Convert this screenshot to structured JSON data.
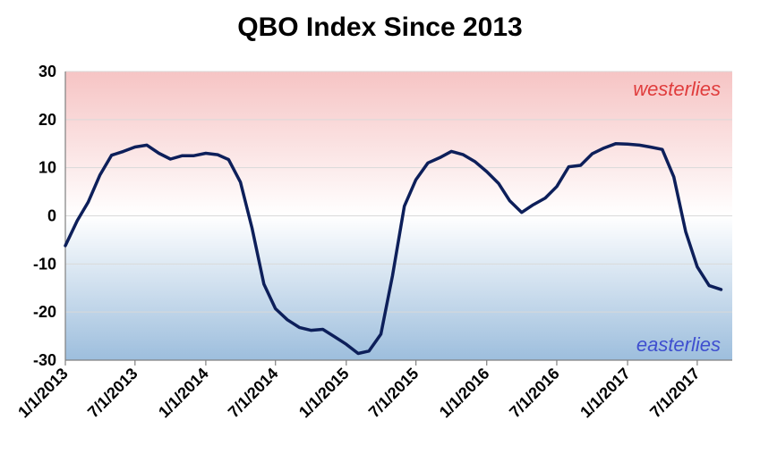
{
  "chart_data": {
    "type": "line",
    "title": "QBO Index Since 2013",
    "ylim": [
      -30,
      30
    ],
    "yticks": [
      30,
      20,
      10,
      0,
      -10,
      -20,
      -30
    ],
    "xlabels": [
      "1/1/2013",
      "7/1/2013",
      "1/1/2014",
      "7/1/2014",
      "1/1/2015",
      "7/1/2015",
      "1/1/2016",
      "7/1/2016",
      "1/1/2017",
      "7/1/2017"
    ],
    "annotations": [
      {
        "id": "westerlies",
        "text": "westerlies",
        "color": "#e03c3c"
      },
      {
        "id": "easterlies",
        "text": "easterlies",
        "color": "#3f4fcf"
      }
    ],
    "line_color": "#0d1f5a",
    "background": {
      "top_color": "#f6c4c4",
      "bottom_color": "#9dbedd"
    },
    "series": [
      {
        "x": [
          "2013-01",
          "2013-02",
          "2013-03",
          "2013-04",
          "2013-05",
          "2013-06",
          "2013-07",
          "2013-08",
          "2013-09",
          "2013-10",
          "2013-11",
          "2013-12",
          "2014-01",
          "2014-02",
          "2014-03",
          "2014-04",
          "2014-05",
          "2014-06",
          "2014-07",
          "2014-08",
          "2014-09",
          "2014-10",
          "2014-11",
          "2014-12",
          "2015-01",
          "2015-02",
          "2015-03",
          "2015-04",
          "2015-05",
          "2015-06",
          "2015-07",
          "2015-08",
          "2015-09",
          "2015-10",
          "2015-11",
          "2015-12",
          "2016-01",
          "2016-02",
          "2016-03",
          "2016-04",
          "2016-05",
          "2016-06",
          "2016-07",
          "2016-08",
          "2016-09",
          "2016-10",
          "2016-11",
          "2016-12",
          "2017-01",
          "2017-02",
          "2017-03",
          "2017-04",
          "2017-05",
          "2017-06",
          "2017-07",
          "2017-08",
          "2017-09"
        ],
        "values": [
          -6.2,
          -1.0,
          2.8,
          8.5,
          12.6,
          13.4,
          14.3,
          14.7,
          13.0,
          11.8,
          12.5,
          12.5,
          13.0,
          12.7,
          11.7,
          7.0,
          -2.5,
          -14.2,
          -19.3,
          -21.6,
          -23.2,
          -23.8,
          -23.6,
          -25.1,
          -26.7,
          -28.6,
          -28.1,
          -24.6,
          -12.5,
          2.0,
          7.5,
          11.0,
          12.1,
          13.4,
          12.7,
          11.3,
          9.2,
          6.7,
          3.1,
          0.7,
          2.3,
          3.7,
          6.1,
          10.2,
          10.5,
          12.9,
          14.1,
          15.0,
          14.9,
          14.7,
          14.3,
          13.8,
          8.1,
          -3.3,
          -10.6,
          -14.5,
          -15.3
        ]
      }
    ]
  }
}
